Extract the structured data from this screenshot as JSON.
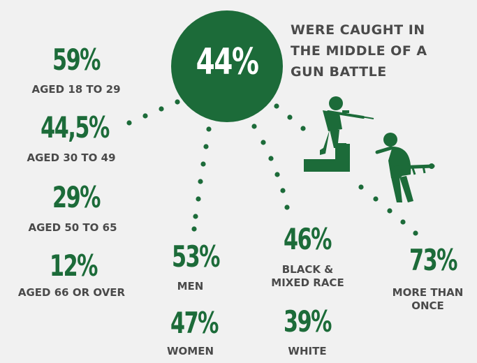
{
  "center": {
    "value": "44%",
    "text": "WERE CAUGHT IN\nTHE MIDDLE OF A\nGUN BATTLE"
  },
  "age_groups": [
    {
      "value": "59%",
      "label": "AGED 18 TO 29"
    },
    {
      "value": "44,5%",
      "label": "AGED 30 TO 49"
    },
    {
      "value": "29%",
      "label": "AGED 50 TO 65"
    },
    {
      "value": "12%",
      "label": "AGED 66 OR OVER"
    }
  ],
  "gender": [
    {
      "value": "53%",
      "label": "MEN"
    },
    {
      "value": "47%",
      "label": "WOMEN"
    }
  ],
  "race": [
    {
      "value": "46%",
      "label": "BLACK &\nMIXED RACE"
    },
    {
      "value": "39%",
      "label": "WHITE"
    }
  ],
  "frequency": {
    "value": "73%",
    "label": "MORE THAN\nONCE"
  },
  "colors": {
    "accent": "#1c6b39",
    "label_text": "#4a4a4a",
    "background": "#f1f1f1"
  },
  "icons": [
    "soldier-with-rifle-icon",
    "steps-icon",
    "soldier-with-gun-icon"
  ]
}
